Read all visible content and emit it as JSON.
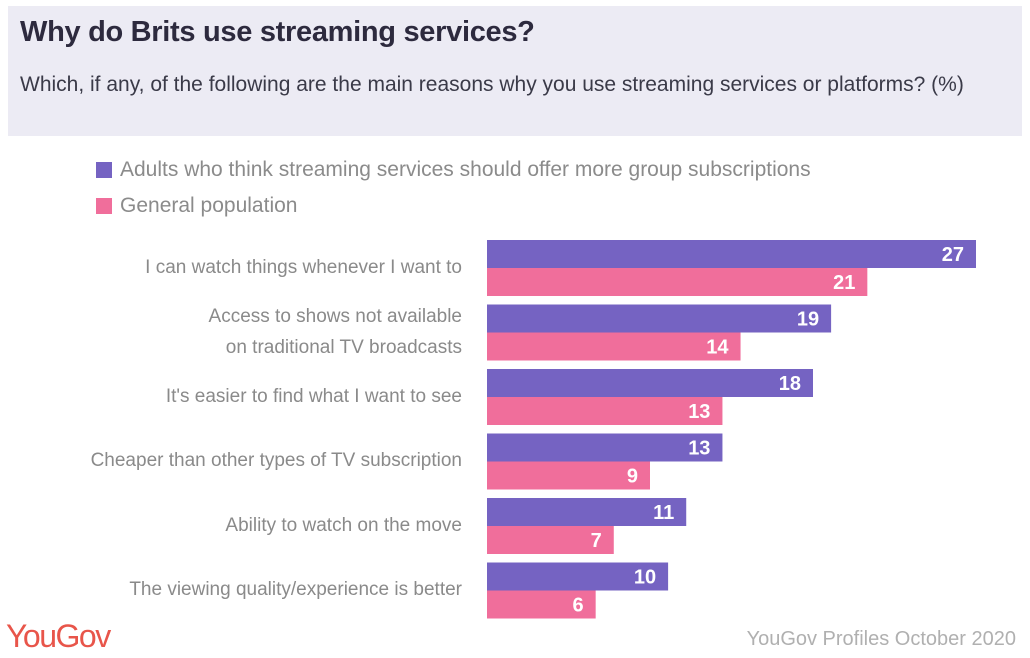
{
  "header": {
    "title": "Why do Brits use streaming services?",
    "subtitle": "Which, if any, of the following are the main reasons why you use streaming services or platforms? (%)"
  },
  "footer": {
    "logo": "YouGov",
    "source": "YouGov Profiles October 2020"
  },
  "chart_data": {
    "type": "bar",
    "orientation": "horizontal",
    "title": "Why do Brits use streaming services?",
    "subtitle": "Which, if any, of the following are the main reasons why you use streaming services or platforms? (%)",
    "xlabel": "",
    "ylabel": "",
    "xlim": [
      0,
      27
    ],
    "grid": false,
    "legend_position": "top-left",
    "categories": [
      [
        "I can watch things whenever I want to"
      ],
      [
        "Access to shows not available",
        "on traditional TV broadcasts"
      ],
      [
        "It's easier to find what I want to see"
      ],
      [
        "Cheaper than other types of TV subscription"
      ],
      [
        "Ability to watch on the move"
      ],
      [
        "The viewing quality/experience is better"
      ]
    ],
    "series": [
      {
        "name": "Adults who think streaming services should offer more group subscriptions",
        "color": "#7563c2",
        "values": [
          27,
          19,
          18,
          13,
          11,
          10
        ]
      },
      {
        "name": "General population",
        "color": "#f06e9b",
        "values": [
          21,
          14,
          13,
          9,
          7,
          6
        ]
      }
    ]
  }
}
